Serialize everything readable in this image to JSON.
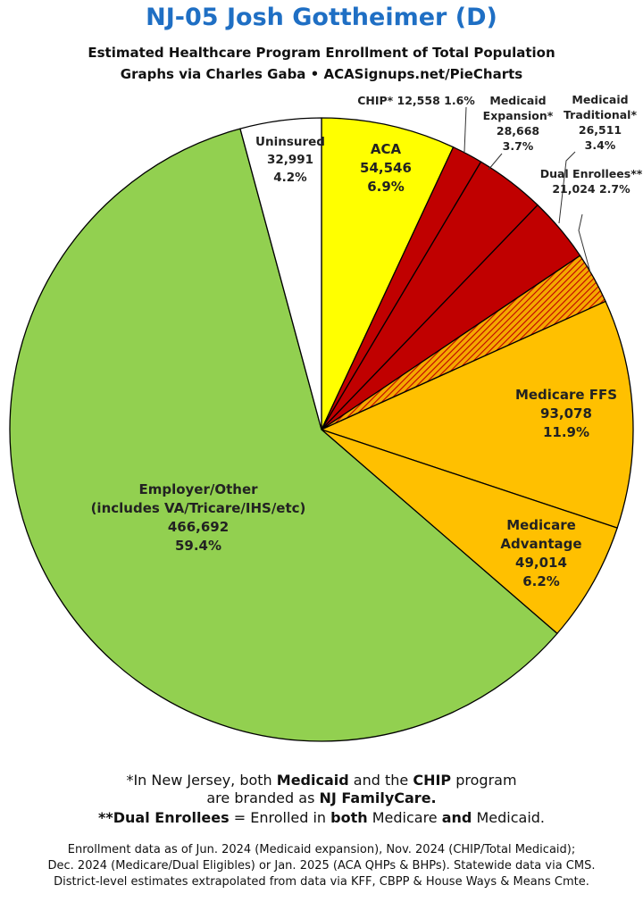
{
  "title": "NJ-05 Josh Gottheimer (D)",
  "subtitle": "Estimated Healthcare Program Enrollment of Total Population",
  "credit": "Graphs via Charles Gaba  •  ACASignups.net/PieCharts",
  "chart_data": {
    "type": "pie",
    "start_angle_deg": 0,
    "direction": "clockwise",
    "slices": [
      {
        "name": "ACA",
        "value": 54546,
        "percent": "6.9%",
        "value_label": "54,546",
        "color": "#ffff00",
        "label_lines": [
          "ACA"
        ]
      },
      {
        "name": "CHIP*",
        "value": 12558,
        "percent": "1.6%",
        "value_label": "12,558",
        "color": "#c00000",
        "label_lines": [
          "CHIP* 12,558 1.6%"
        ]
      },
      {
        "name": "Medicaid Expansion*",
        "value": 28668,
        "percent": "3.7%",
        "value_label": "28,668",
        "color": "#c00000",
        "label_lines": [
          "Medicaid",
          "Expansion*"
        ]
      },
      {
        "name": "Medicaid Traditional*",
        "value": 26511,
        "percent": "3.4%",
        "value_label": "26,511",
        "color": "#c00000",
        "label_lines": [
          "Medicaid",
          "Traditional*"
        ]
      },
      {
        "name": "Dual Enrollees**",
        "value": 21024,
        "percent": "2.7%",
        "value_label": "21,024",
        "color": "#f5a800",
        "pattern": "hatched",
        "label_lines": [
          "Dual Enrollees**",
          "21,024 2.7%"
        ]
      },
      {
        "name": "Medicare FFS",
        "value": 93078,
        "percent": "11.9%",
        "value_label": "93,078",
        "color": "#ffc000",
        "label_lines": [
          "Medicare FFS"
        ]
      },
      {
        "name": "Medicare Advantage",
        "value": 49014,
        "percent": "6.2%",
        "value_label": "49,014",
        "color": "#ffc000",
        "label_lines": [
          "Medicare",
          "Advantage"
        ]
      },
      {
        "name": "Employer/Other",
        "value": 466692,
        "percent": "59.4%",
        "value_label": "466,692",
        "color": "#92d050",
        "label_lines": [
          "Employer/Other",
          "(includes VA/Tricare/IHS/etc)"
        ]
      },
      {
        "name": "Uninsured",
        "value": 32991,
        "percent": "4.2%",
        "value_label": "32,991",
        "color": "#ffffff",
        "label_lines": [
          "Uninsured"
        ]
      }
    ]
  },
  "footnotes": {
    "line1_a": "*In New Jersey, both ",
    "line1_b": "Medicaid",
    "line1_c": " and the ",
    "line1_d": "CHIP",
    "line1_e": " program",
    "line2_a": "are branded as ",
    "line2_b": "NJ FamilyCare.",
    "line3_a": "**Dual Enrollees",
    "line3_b": " = Enrolled in ",
    "line3_c": "both",
    "line3_d": " Medicare ",
    "line3_e": "and",
    "line3_f": " Medicaid."
  },
  "notes": [
    "Enrollment data as of Jun. 2024 (Medicaid expansion), Nov. 2024 (CHIP/Total Medicaid);",
    "Dec. 2024 (Medicare/Dual Eligibles) or Jan. 2025 (ACA QHPs & BHPs). Statewide data via CMS.",
    "District-level estimates extrapolated from data via KFF, CBPP & House Ways & Means Cmte."
  ]
}
